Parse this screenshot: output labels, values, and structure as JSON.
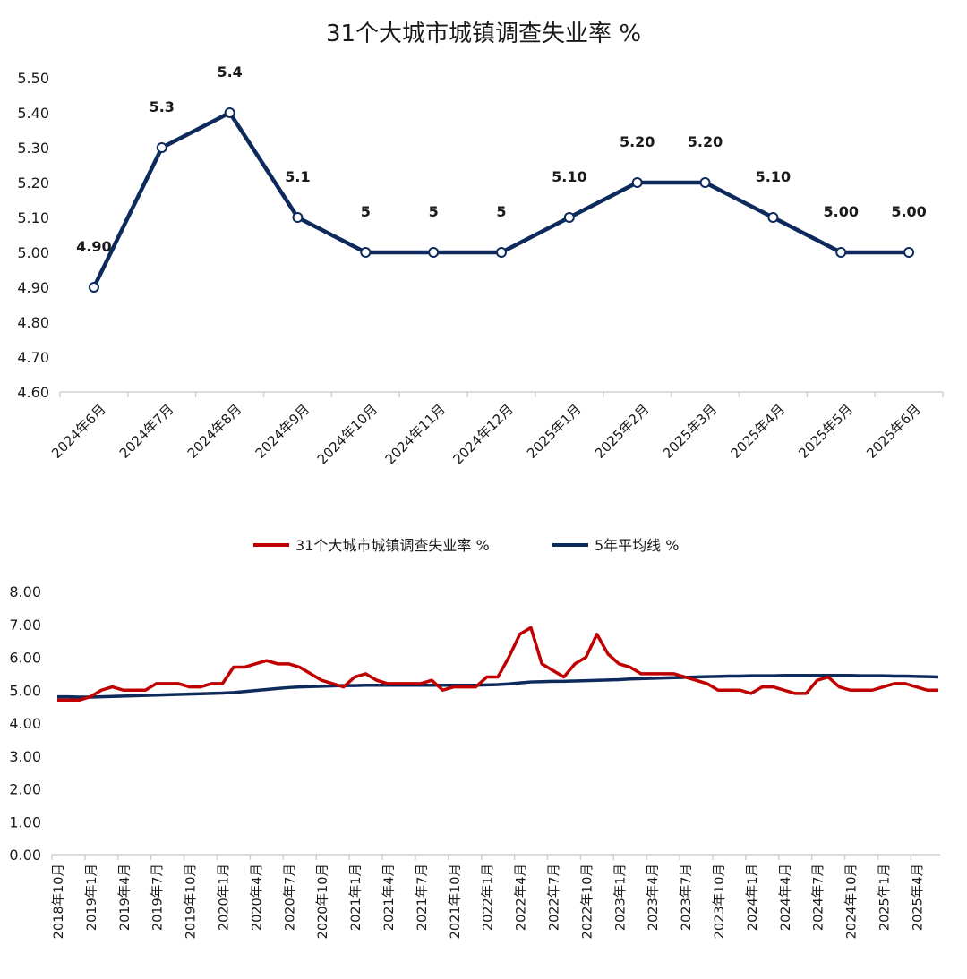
{
  "chart_data": [
    {
      "type": "line",
      "title": "31个大城市城镇调查失业率 %",
      "categories": [
        "2024年6月",
        "2024年7月",
        "2024年8月",
        "2024年9月",
        "2024年10月",
        "2024年11月",
        "2024年12月",
        "2025年1月",
        "2025年2月",
        "2025年3月",
        "2025年4月",
        "2025年5月",
        "2025年6月"
      ],
      "values": [
        4.9,
        5.3,
        5.4,
        5.1,
        5.0,
        5.0,
        5.0,
        5.1,
        5.2,
        5.2,
        5.1,
        5.0,
        5.0
      ],
      "data_labels": [
        "4.90",
        "5.3",
        "5.4",
        "5.1",
        "5",
        "5",
        "5",
        "5.10",
        "5.20",
        "5.20",
        "5.10",
        "5.00",
        "5.00"
      ],
      "ylim": [
        4.6,
        5.5
      ],
      "yticks": [
        "4.60",
        "4.70",
        "4.80",
        "4.90",
        "5.00",
        "5.10",
        "5.20",
        "5.30",
        "5.40",
        "5.50"
      ],
      "line_color": "#0d2a5c",
      "grid": false
    },
    {
      "type": "line",
      "legend_position": "top",
      "ylim": [
        0,
        8
      ],
      "yticks": [
        "0.00",
        "1.00",
        "2.00",
        "3.00",
        "4.00",
        "5.00",
        "6.00",
        "7.00",
        "8.00"
      ],
      "x_start": "2018年10月",
      "x_end": "2025年6月",
      "xtick_labels": [
        "2018年10月",
        "2019年1月",
        "2019年4月",
        "2019年7月",
        "2019年10月",
        "2020年1月",
        "2020年4月",
        "2020年7月",
        "2020年10月",
        "2021年1月",
        "2021年4月",
        "2021年7月",
        "2021年10月",
        "2022年1月",
        "2022年4月",
        "2022年7月",
        "2022年10月",
        "2023年1月",
        "2023年4月",
        "2023年7月",
        "2023年10月",
        "2024年1月",
        "2024年4月",
        "2024年7月",
        "2024年10月",
        "2025年1月",
        "2025年4月"
      ],
      "series": [
        {
          "name": "31个大城市城镇调查失业率 %",
          "color": "#c00000",
          "values": [
            4.7,
            4.7,
            4.7,
            4.8,
            5.0,
            5.1,
            5.0,
            5.0,
            5.0,
            5.2,
            5.2,
            5.2,
            5.1,
            5.1,
            5.2,
            5.2,
            5.7,
            5.7,
            5.8,
            5.9,
            5.8,
            5.8,
            5.7,
            5.5,
            5.3,
            5.2,
            5.1,
            5.4,
            5.5,
            5.3,
            5.2,
            5.2,
            5.2,
            5.2,
            5.3,
            5.0,
            5.1,
            5.1,
            5.1,
            5.4,
            5.4,
            6.0,
            6.7,
            6.9,
            5.8,
            5.6,
            5.4,
            5.8,
            6.0,
            6.7,
            6.1,
            5.8,
            5.7,
            5.5,
            5.5,
            5.5,
            5.5,
            5.4,
            5.3,
            5.2,
            5.0,
            5.0,
            5.0,
            4.9,
            5.1,
            5.1,
            5.0,
            4.9,
            4.9,
            5.3,
            5.4,
            5.1,
            5.0,
            5.0,
            5.0,
            5.1,
            5.2,
            5.2,
            5.1,
            5.0,
            5.0
          ]
        },
        {
          "name": "5年平均线 %",
          "color": "#0d2a5c",
          "values": [
            4.8,
            4.8,
            4.79,
            4.79,
            4.8,
            4.81,
            4.82,
            4.83,
            4.84,
            4.85,
            4.86,
            4.87,
            4.88,
            4.89,
            4.9,
            4.91,
            4.93,
            4.96,
            4.99,
            5.02,
            5.05,
            5.08,
            5.1,
            5.11,
            5.12,
            5.13,
            5.14,
            5.14,
            5.15,
            5.15,
            5.15,
            5.15,
            5.15,
            5.15,
            5.15,
            5.15,
            5.15,
            5.15,
            5.15,
            5.16,
            5.17,
            5.19,
            5.22,
            5.25,
            5.26,
            5.27,
            5.27,
            5.28,
            5.29,
            5.3,
            5.31,
            5.32,
            5.34,
            5.35,
            5.36,
            5.37,
            5.38,
            5.39,
            5.4,
            5.41,
            5.42,
            5.43,
            5.43,
            5.44,
            5.44,
            5.44,
            5.45,
            5.45,
            5.45,
            5.45,
            5.45,
            5.45,
            5.45,
            5.44,
            5.44,
            5.44,
            5.43,
            5.43,
            5.42,
            5.41,
            5.4
          ]
        }
      ]
    }
  ]
}
